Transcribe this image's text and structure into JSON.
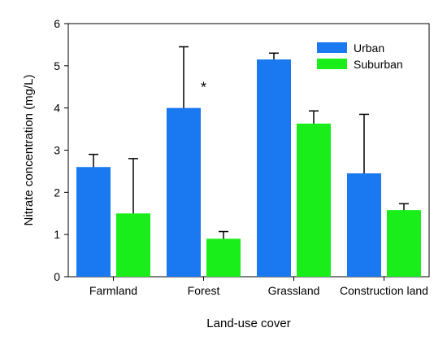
{
  "chart_data": {
    "type": "bar",
    "categories": [
      "Farmland",
      "Forest",
      "Grassland",
      "Construction land"
    ],
    "series": [
      {
        "name": "Urban",
        "color": "#1a78f0",
        "values": [
          2.6,
          4.0,
          5.15,
          2.45
        ],
        "errors": [
          0.3,
          1.45,
          0.15,
          1.4
        ]
      },
      {
        "name": "Suburban",
        "color": "#1aee1a",
        "values": [
          1.5,
          0.9,
          3.63,
          1.58
        ],
        "errors": [
          1.3,
          0.17,
          0.3,
          0.15
        ]
      }
    ],
    "xlabel": "Land-use cover",
    "ylabel": "Nitrate concentration (mg/L)",
    "ylim": [
      0,
      6
    ],
    "yticks": [
      "0",
      "1",
      "2",
      "3",
      "4",
      "5",
      "6"
    ],
    "annotation": {
      "text": "*",
      "category": "Forest",
      "y": 4.6
    },
    "legend": "top-right",
    "grid": false
  }
}
